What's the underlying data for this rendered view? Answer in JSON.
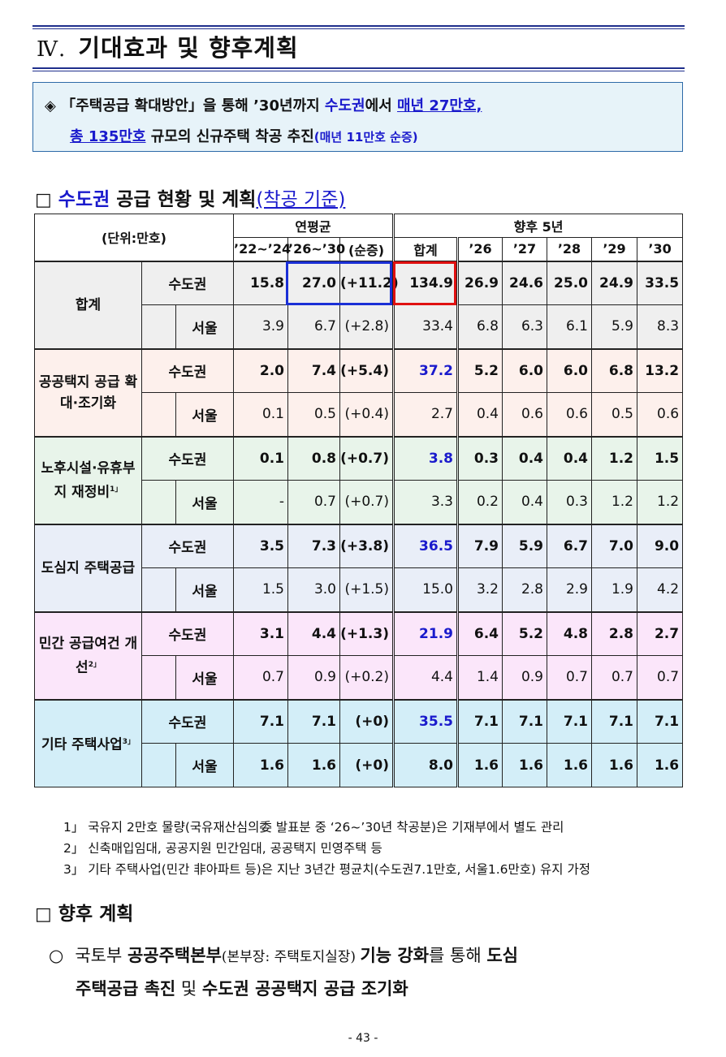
{
  "section": {
    "num": "Ⅳ.",
    "title": "기대효과 및 향후계획"
  },
  "summary": {
    "bullet": "◈",
    "l1_a": "「주택공급 확대방안」을 통해 ’30년까지 ",
    "l1_b": "수도권",
    "l1_c": "에서 ",
    "l1_d": "매년 27만호,",
    "l2_a": "총 135만호",
    "l2_b": " 규모의 신규주택 착공 추진",
    "l2_c": "(매년 11만호 순증)"
  },
  "h_status": {
    "box": "□",
    "a": "수도권",
    "b": " 공급 현황 및 계획",
    "sub": "(착공 기준)"
  },
  "table": {
    "unit": "(단위:만호)",
    "grp_avg": "연평균",
    "grp_future": "향후 5년",
    "cols": [
      "’22~’24",
      "’26~’30",
      "(순증)",
      "합계",
      "’26",
      "’27",
      "’28",
      "’29",
      "’30"
    ],
    "groups": [
      {
        "name": "합계",
        "bg": "#efefef",
        "r1": {
          "region": "수도권",
          "vals": [
            "15.8",
            "27.0",
            "(+11.2)",
            "134.9",
            "26.9",
            "24.6",
            "25.0",
            "24.9",
            "33.5"
          ]
        },
        "r2": {
          "region": "서울",
          "vals": [
            "3.9",
            "6.7",
            "(+2.8)",
            "33.4",
            "6.8",
            "6.3",
            "6.1",
            "5.9",
            "8.3"
          ]
        }
      },
      {
        "name": "공공택지 공급 확대·조기화",
        "bg": "#fdf0ec",
        "r1": {
          "region": "수도권",
          "vals": [
            "2.0",
            "7.4",
            "(+5.4)",
            "37.2",
            "5.2",
            "6.0",
            "6.0",
            "6.8",
            "13.2"
          ]
        },
        "r2": {
          "region": "서울",
          "vals": [
            "0.1",
            "0.5",
            "(+0.4)",
            "2.7",
            "0.4",
            "0.6",
            "0.6",
            "0.5",
            "0.6"
          ]
        }
      },
      {
        "name": "노후시설·유휴부지 재정비",
        "sup": "1」",
        "bg": "#e8f4ea",
        "r1": {
          "region": "수도권",
          "vals": [
            "0.1",
            "0.8",
            "(+0.7)",
            "3.8",
            "0.3",
            "0.4",
            "0.4",
            "1.2",
            "1.5"
          ]
        },
        "r2": {
          "region": "서울",
          "vals": [
            "-",
            "0.7",
            "(+0.7)",
            "3.3",
            "0.2",
            "0.4",
            "0.3",
            "1.2",
            "1.2"
          ]
        }
      },
      {
        "name": "도심지 주택공급",
        "bg": "#e9eef8",
        "r1": {
          "region": "수도권",
          "vals": [
            "3.5",
            "7.3",
            "(+3.8)",
            "36.5",
            "7.9",
            "5.9",
            "6.7",
            "7.0",
            "9.0"
          ]
        },
        "r2": {
          "region": "서울",
          "vals": [
            "1.5",
            "3.0",
            "(+1.5)",
            "15.0",
            "3.2",
            "2.8",
            "2.9",
            "1.9",
            "4.2"
          ]
        }
      },
      {
        "name": "민간 공급여건 개선",
        "sup": "2」",
        "bg": "#fbe6fa",
        "r1": {
          "region": "수도권",
          "vals": [
            "3.1",
            "4.4",
            "(+1.3)",
            "21.9",
            "6.4",
            "5.2",
            "4.8",
            "2.8",
            "2.7"
          ]
        },
        "r2": {
          "region": "서울",
          "vals": [
            "0.7",
            "0.9",
            "(+0.2)",
            "4.4",
            "1.4",
            "0.9",
            "0.7",
            "0.7",
            "0.7"
          ]
        }
      },
      {
        "name": "기타 주택사업",
        "sup": "3」",
        "bg": "#d3eef8",
        "r1": {
          "region": "수도권",
          "vals": [
            "7.1",
            "7.1",
            "(+0)",
            "35.5",
            "7.1",
            "7.1",
            "7.1",
            "7.1",
            "7.1"
          ]
        },
        "r2": {
          "region": "서울",
          "vals": [
            "1.6",
            "1.6",
            "(+0)",
            "8.0",
            "1.6",
            "1.6",
            "1.6",
            "1.6",
            "1.6"
          ]
        }
      }
    ]
  },
  "notes": [
    "1」 국유지 2만호 물량(국유재산심의委 발표분 중 ‘26~’30년 착공분)은 기재부에서 별도 관리",
    "2」 신축매입임대, 공공지원 민간임대, 공공택지 민영주택 등",
    "3」 기타 주택사업(민간 非아파트 등)은 지난 3년간 평균치(수도권7.1만호, 서울1.6만호) 유지 가정"
  ],
  "h_plan": {
    "box": "□",
    "title": "향후 계획"
  },
  "plan": {
    "mark": "○",
    "a": "국토부 ",
    "b": "공공주택본부",
    "c": "(본부장: 주택토지실장) ",
    "d": "기능 강화",
    "e": "를 통해 ",
    "f": "도심",
    "g": "주택공급 촉진",
    "h": " 및 ",
    "i": "수도권 공공택지 공급 조기화"
  },
  "page": "- 43 -"
}
